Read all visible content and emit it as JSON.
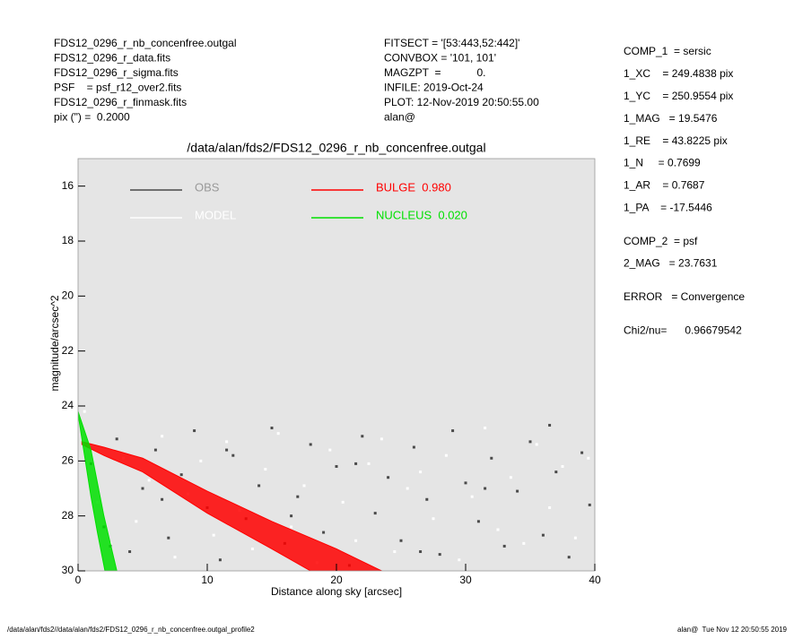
{
  "header": {
    "left": [
      "FDS12_0296_r_nb_concenfree.outgal",
      "FDS12_0296_r_data.fits",
      "FDS12_0296_r_sigma.fits",
      "PSF    = psf_r12_over2.fits",
      "FDS12_0296_r_finmask.fits",
      "pix (\") =  0.2000"
    ],
    "middle": [
      "FITSECT = '[53:443,52:442]'",
      "CONVBOX = '101, 101'",
      "MAGZPT  =            0.",
      "INFILE: 2019-Oct-24",
      "PLOT: 12-Nov-2019 20:50:55.00",
      "alan@"
    ]
  },
  "parameters": [
    [
      "COMP_1  = sersic",
      "1_XC    = 249.4838 pix",
      "1_YC    = 250.9554 pix",
      "1_MAG   = 19.5476",
      "1_RE    = 43.8225 pix",
      "1_N     = 0.7699",
      "1_AR    = 0.7687",
      "1_PA    = -17.5446"
    ],
    [
      "COMP_2  = psf",
      "2_MAG   = 23.7631"
    ],
    [
      "ERROR   = Convergence"
    ],
    [
      "Chi2/nu=      0.96679542"
    ]
  ],
  "footer": {
    "left": "/data/alan/fds2//data/alan/fds2/FDS12_0296_r_nb_concenfree.outgal_profile2",
    "right": "alan@  Tue Nov 12 20:50:55 2019"
  },
  "chart_data": {
    "type": "scatter",
    "title": "/data/alan/fds2/FDS12_0296_r_nb_concenfree.outgal",
    "x_label": "Distance along sky [arcsec]",
    "y_label": "magnitude/arcsec^2",
    "xlim": [
      0,
      40
    ],
    "ylim": [
      30,
      15
    ],
    "xticks": [
      0,
      10,
      20,
      30,
      40
    ],
    "yticks": [
      16,
      18,
      20,
      22,
      24,
      26,
      28,
      30
    ],
    "background": "#e5e5e5",
    "series": [
      {
        "name": "OBS",
        "color": "#4a4a4a",
        "style": "points",
        "x": [
          1,
          2,
          3,
          4,
          5,
          6,
          7,
          8,
          9,
          10,
          11,
          12,
          13,
          14,
          15,
          16,
          17,
          18,
          19,
          20,
          21,
          22,
          23,
          24,
          25,
          26,
          27,
          28,
          29,
          30,
          31,
          32,
          33,
          34,
          35,
          36,
          37,
          38,
          39,
          39.6,
          2.5,
          6.5,
          11.5,
          16.5,
          21.5,
          26.5,
          31.5,
          36.5
        ],
        "values": [
          26.1,
          28.4,
          25.2,
          29.3,
          27.0,
          25.6,
          28.8,
          26.5,
          24.9,
          27.7,
          29.6,
          25.8,
          28.1,
          26.9,
          24.8,
          29.0,
          27.3,
          25.4,
          28.6,
          26.2,
          29.8,
          25.1,
          27.9,
          26.6,
          28.9,
          25.5,
          27.4,
          29.4,
          24.9,
          26.8,
          28.2,
          25.9,
          29.1,
          27.1,
          25.3,
          28.7,
          26.4,
          29.5,
          25.7,
          27.6,
          29.1,
          27.4,
          25.6,
          28.0,
          26.1,
          29.3,
          27.0,
          24.7
        ]
      },
      {
        "name": "MODEL",
        "color": "#ffffff",
        "style": "points",
        "x": [
          0.5,
          1.5,
          2.5,
          3.5,
          4.5,
          5.5,
          6.5,
          7.5,
          8.5,
          9.5,
          10.5,
          11.5,
          12.5,
          13.5,
          14.5,
          15.5,
          16.5,
          17.5,
          18.5,
          19.5,
          20.5,
          21.5,
          22.5,
          23.5,
          24.5,
          25.5,
          26.5,
          27.5,
          28.5,
          29.5,
          30.5,
          31.5,
          32.5,
          33.5,
          34.5,
          35.5,
          36.5,
          37.5,
          38.5,
          39.5
        ],
        "values": [
          24.2,
          27.5,
          29.0,
          25.9,
          28.2,
          26.7,
          25.1,
          29.5,
          27.2,
          26.0,
          28.7,
          25.3,
          27.8,
          29.2,
          26.3,
          25.0,
          28.4,
          26.9,
          29.7,
          25.6,
          27.5,
          28.9,
          26.1,
          25.2,
          29.3,
          27.0,
          26.4,
          28.1,
          25.8,
          29.6,
          27.3,
          24.8,
          28.5,
          26.6,
          29.0,
          25.4,
          27.7,
          26.2,
          28.8,
          25.9
        ]
      },
      {
        "name": "BULGE  0.980",
        "color": "#ff0000",
        "style": "band",
        "x": [
          0.3,
          2,
          5,
          10,
          15,
          18,
          20,
          23.5
        ],
        "y_high": [
          25.3,
          25.5,
          25.9,
          27.1,
          28.2,
          28.8,
          29.2,
          30.0
        ],
        "y_low": [
          25.4,
          25.8,
          26.4,
          27.9,
          29.2,
          30.0,
          30.6,
          31.6
        ]
      },
      {
        "name": "NUCLEUS  0.020",
        "color": "#00e000",
        "style": "band",
        "x": [
          0,
          0.5,
          1,
          1.5,
          2,
          2.5,
          3
        ],
        "y_high": [
          24.2,
          24.9,
          25.6,
          26.8,
          28.0,
          29.0,
          30.0
        ],
        "y_low": [
          24.3,
          25.8,
          27.3,
          28.6,
          29.8,
          31.0,
          32.2
        ]
      }
    ]
  }
}
